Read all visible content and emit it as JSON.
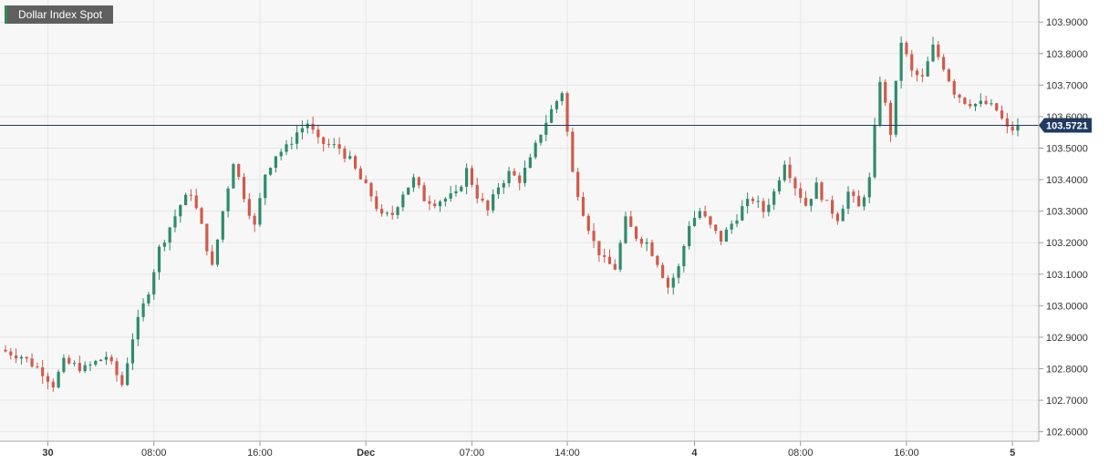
{
  "title": "Dollar Index Spot",
  "colors": {
    "up": "#2e8b6b",
    "down": "#d2594a",
    "grid": "#e6e6e6",
    "plot_bg": "#f7f7f8",
    "price_line": "#1f3b63",
    "price_tag": "#1f3b63"
  },
  "chart_data": {
    "type": "candlestick",
    "title": "Dollar Index Spot",
    "ylim": [
      102.57,
      103.97
    ],
    "y_ticks": [
      "103.9000",
      "103.8000",
      "103.7000",
      "103.6000",
      "103.5000",
      "103.4000",
      "103.3000",
      "103.2000",
      "103.1000",
      "103.0000",
      "102.9000",
      "102.8000",
      "102.7000",
      "102.6000"
    ],
    "x_ticks": [
      {
        "label": "30",
        "bold": true,
        "index": 8
      },
      {
        "label": "08:00",
        "bold": false,
        "index": 28
      },
      {
        "label": "16:00",
        "bold": false,
        "index": 48
      },
      {
        "label": "Dec",
        "bold": true,
        "index": 68
      },
      {
        "label": "07:00",
        "bold": false,
        "index": 88
      },
      {
        "label": "14:00",
        "bold": false,
        "index": 106
      },
      {
        "label": "4",
        "bold": true,
        "index": 130
      },
      {
        "label": "08:00",
        "bold": false,
        "index": 150
      },
      {
        "label": "16:00",
        "bold": false,
        "index": 170
      },
      {
        "label": "5",
        "bold": true,
        "index": 190
      }
    ],
    "last_price": 103.5721,
    "last_price_label": "103.5721",
    "waypoints": [
      [
        0,
        102.86
      ],
      [
        4,
        102.84
      ],
      [
        8,
        102.79
      ],
      [
        10,
        102.75
      ],
      [
        12,
        102.82
      ],
      [
        16,
        102.8
      ],
      [
        20,
        102.84
      ],
      [
        23,
        102.75
      ],
      [
        25,
        102.9
      ],
      [
        28,
        103.05
      ],
      [
        30,
        103.18
      ],
      [
        34,
        103.32
      ],
      [
        36,
        103.36
      ],
      [
        38,
        103.25
      ],
      [
        40,
        103.12
      ],
      [
        42,
        103.3
      ],
      [
        44,
        103.46
      ],
      [
        46,
        103.35
      ],
      [
        48,
        103.25
      ],
      [
        50,
        103.42
      ],
      [
        52,
        103.48
      ],
      [
        54,
        103.5
      ],
      [
        56,
        103.55
      ],
      [
        58,
        103.58
      ],
      [
        60,
        103.52
      ],
      [
        64,
        103.5
      ],
      [
        66,
        103.46
      ],
      [
        68,
        103.4
      ],
      [
        70,
        103.35
      ],
      [
        72,
        103.28
      ],
      [
        74,
        103.29
      ],
      [
        76,
        103.36
      ],
      [
        78,
        103.4
      ],
      [
        80,
        103.34
      ],
      [
        82,
        103.33
      ],
      [
        86,
        103.35
      ],
      [
        88,
        103.43
      ],
      [
        90,
        103.35
      ],
      [
        92,
        103.3
      ],
      [
        94,
        103.38
      ],
      [
        96,
        103.42
      ],
      [
        98,
        103.4
      ],
      [
        100,
        103.46
      ],
      [
        102,
        103.55
      ],
      [
        104,
        103.62
      ],
      [
        106,
        103.68
      ],
      [
        107,
        103.55
      ],
      [
        108,
        103.42
      ],
      [
        110,
        103.3
      ],
      [
        112,
        103.2
      ],
      [
        114,
        103.14
      ],
      [
        116,
        103.12
      ],
      [
        118,
        103.27
      ],
      [
        120,
        103.22
      ],
      [
        122,
        103.2
      ],
      [
        124,
        103.14
      ],
      [
        126,
        103.06
      ],
      [
        128,
        103.12
      ],
      [
        130,
        103.26
      ],
      [
        132,
        103.3
      ],
      [
        134,
        103.25
      ],
      [
        136,
        103.21
      ],
      [
        138,
        103.26
      ],
      [
        140,
        103.31
      ],
      [
        142,
        103.34
      ],
      [
        144,
        103.3
      ],
      [
        146,
        103.36
      ],
      [
        148,
        103.46
      ],
      [
        150,
        103.38
      ],
      [
        152,
        103.32
      ],
      [
        154,
        103.38
      ],
      [
        156,
        103.32
      ],
      [
        158,
        103.28
      ],
      [
        160,
        103.36
      ],
      [
        162,
        103.31
      ],
      [
        164,
        103.4
      ],
      [
        166,
        103.72
      ],
      [
        168,
        103.55
      ],
      [
        169,
        103.7
      ],
      [
        170,
        103.84
      ],
      [
        172,
        103.74
      ],
      [
        174,
        103.72
      ],
      [
        176,
        103.82
      ],
      [
        178,
        103.76
      ],
      [
        180,
        103.68
      ],
      [
        182,
        103.65
      ],
      [
        184,
        103.64
      ],
      [
        186,
        103.64
      ],
      [
        188,
        103.62
      ],
      [
        190,
        103.56
      ],
      [
        191,
        103.56
      ]
    ]
  }
}
